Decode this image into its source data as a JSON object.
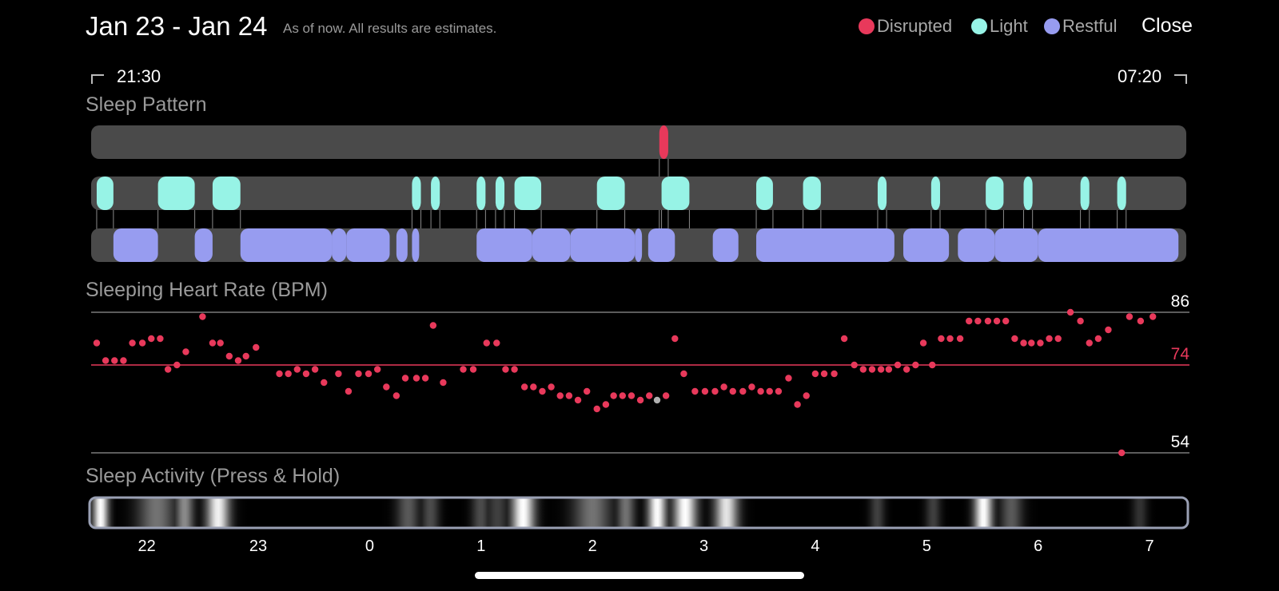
{
  "header": {
    "date_range": "Jan 23 - Jan 24",
    "note": "As of now. All results are estimates.",
    "close_label": "Close"
  },
  "legend": [
    {
      "label": "Disrupted",
      "color": "#e8395b"
    },
    {
      "label": "Light",
      "color": "#97f3e6"
    },
    {
      "label": "Restful",
      "color": "#979cf0"
    }
  ],
  "time_range": {
    "start": "21:30",
    "end": "07:20"
  },
  "sections": {
    "sleep_pattern": "Sleep Pattern",
    "heart_rate": "Sleeping Heart Rate (BPM)",
    "activity": "Sleep Activity (Press & Hold)"
  },
  "colors": {
    "track": "#4a4a4a",
    "heart_dot": "#e8395b",
    "heart_selected_dot": "#b0b0b0",
    "avg_line": "#e8395b",
    "ref_line": "#7a7a7a",
    "activity_border": "#9aa0b4"
  },
  "chart_data": [
    {
      "type": "timeline",
      "title": "Sleep Pattern",
      "x_unit": "hours (22 = 22:00, 0 = midnight)",
      "start": 21.5,
      "end": 31.33,
      "rows": [
        {
          "name": "Disrupted",
          "segments": [
            [
              26.6,
              26.68
            ]
          ]
        },
        {
          "name": "Light",
          "segments": [
            [
              21.55,
              21.7
            ],
            [
              22.1,
              22.43
            ],
            [
              22.59,
              22.84
            ],
            [
              24.38,
              24.46
            ],
            [
              24.55,
              24.63
            ],
            [
              24.96,
              25.04
            ],
            [
              25.13,
              25.21
            ],
            [
              25.3,
              25.54
            ],
            [
              26.04,
              26.29
            ],
            [
              26.62,
              26.87
            ],
            [
              27.47,
              27.62
            ],
            [
              27.89,
              28.05
            ],
            [
              28.56,
              28.64
            ],
            [
              29.04,
              29.12
            ],
            [
              29.53,
              29.69
            ],
            [
              29.87,
              29.95
            ],
            [
              30.38,
              30.46
            ],
            [
              30.71,
              30.79
            ]
          ]
        },
        {
          "name": "Restful",
          "segments": [
            [
              21.7,
              22.1
            ],
            [
              22.43,
              22.59
            ],
            [
              22.84,
              23.66
            ],
            [
              23.66,
              23.79
            ],
            [
              23.79,
              24.18
            ],
            [
              24.24,
              24.34
            ],
            [
              24.38,
              24.44
            ],
            [
              24.96,
              25.46
            ],
            [
              25.46,
              25.8
            ],
            [
              25.8,
              26.38
            ],
            [
              26.38,
              26.44
            ],
            [
              26.5,
              26.74
            ],
            [
              27.08,
              27.31
            ],
            [
              27.47,
              28.71
            ],
            [
              28.79,
              29.2
            ],
            [
              29.28,
              29.61
            ],
            [
              29.61,
              30.0
            ],
            [
              30.0,
              31.26
            ]
          ]
        }
      ]
    },
    {
      "type": "scatter",
      "title": "Sleeping Heart Rate (BPM)",
      "ylabel": "BPM",
      "ylim": [
        54,
        86
      ],
      "reference_lines": [
        86,
        74,
        54
      ],
      "average": 74,
      "selected_x": 26.58,
      "x": [
        21.55,
        21.63,
        21.71,
        21.79,
        21.87,
        21.96,
        22.04,
        22.12,
        22.19,
        22.27,
        22.35,
        22.5,
        22.59,
        22.66,
        22.74,
        22.82,
        22.89,
        22.98,
        23.19,
        23.27,
        23.35,
        23.43,
        23.51,
        23.59,
        23.72,
        23.81,
        23.9,
        23.99,
        24.07,
        24.15,
        24.24,
        24.32,
        24.42,
        24.5,
        24.57,
        24.66,
        24.84,
        24.93,
        25.05,
        25.14,
        25.22,
        25.3,
        25.39,
        25.47,
        25.55,
        25.63,
        25.71,
        25.79,
        25.87,
        25.95,
        26.04,
        26.12,
        26.19,
        26.27,
        26.35,
        26.43,
        26.51,
        26.58,
        26.66,
        26.74,
        26.82,
        26.92,
        27.01,
        27.1,
        27.18,
        27.26,
        27.35,
        27.43,
        27.51,
        27.59,
        27.67,
        27.76,
        27.84,
        27.92,
        28.0,
        28.08,
        28.17,
        28.26,
        28.35,
        28.43,
        28.51,
        28.59,
        28.66,
        28.74,
        28.82,
        28.9,
        28.97,
        29.05,
        29.13,
        29.21,
        29.3,
        29.38,
        29.46,
        29.55,
        29.63,
        29.71,
        29.79,
        29.87,
        29.94,
        30.02,
        30.1,
        30.18,
        30.29,
        30.38,
        30.46,
        30.54,
        30.63,
        30.75,
        30.82,
        30.92,
        31.03
      ],
      "y": [
        79,
        75,
        75,
        75,
        79,
        79,
        80,
        80,
        73,
        74,
        77,
        85,
        79,
        79,
        76,
        75,
        76,
        78,
        72,
        72,
        73,
        72,
        73,
        70,
        72,
        68,
        72,
        72,
        73,
        69,
        67,
        71,
        71,
        71,
        83,
        70,
        73,
        73,
        79,
        79,
        73,
        73,
        69,
        69,
        68,
        69,
        67,
        67,
        66,
        68,
        64,
        65,
        67,
        67,
        67,
        66,
        67,
        66,
        67,
        80,
        72,
        68,
        68,
        68,
        69,
        68,
        68,
        69,
        68,
        68,
        68,
        71,
        65,
        67,
        72,
        72,
        72,
        80,
        74,
        73,
        73,
        73,
        73,
        74,
        73,
        74,
        79,
        74,
        80,
        80,
        80,
        84,
        84,
        84,
        84,
        84,
        80,
        79,
        79,
        79,
        80,
        80,
        86,
        84,
        79,
        80,
        82,
        54,
        85,
        84,
        85
      ]
    },
    {
      "type": "heatmap",
      "title": "Sleep Activity (Press & Hold)",
      "x_ticks": [
        "22",
        "23",
        "0",
        "1",
        "2",
        "3",
        "4",
        "5",
        "6",
        "7"
      ],
      "x_tick_values": [
        22,
        23,
        24,
        25,
        26,
        27,
        28,
        29,
        30,
        31
      ],
      "activity_peaks": [
        {
          "center": 21.6,
          "width": 0.1,
          "intensity": 1.0
        },
        {
          "center": 22.1,
          "width": 0.25,
          "intensity": 0.45
        },
        {
          "center": 22.35,
          "width": 0.12,
          "intensity": 0.55
        },
        {
          "center": 22.65,
          "width": 0.15,
          "intensity": 0.95
        },
        {
          "center": 24.35,
          "width": 0.15,
          "intensity": 0.35
        },
        {
          "center": 24.55,
          "width": 0.12,
          "intensity": 0.3
        },
        {
          "center": 25.0,
          "width": 0.12,
          "intensity": 0.3
        },
        {
          "center": 25.15,
          "width": 0.15,
          "intensity": 0.25
        },
        {
          "center": 25.38,
          "width": 0.15,
          "intensity": 1.0
        },
        {
          "center": 26.0,
          "width": 0.25,
          "intensity": 0.45
        },
        {
          "center": 26.3,
          "width": 0.12,
          "intensity": 0.45
        },
        {
          "center": 26.58,
          "width": 0.12,
          "intensity": 1.0
        },
        {
          "center": 26.83,
          "width": 0.15,
          "intensity": 1.0
        },
        {
          "center": 27.2,
          "width": 0.15,
          "intensity": 0.9
        },
        {
          "center": 28.55,
          "width": 0.1,
          "intensity": 0.25
        },
        {
          "center": 29.05,
          "width": 0.1,
          "intensity": 0.25
        },
        {
          "center": 29.5,
          "width": 0.12,
          "intensity": 1.0
        },
        {
          "center": 29.75,
          "width": 0.15,
          "intensity": 0.35
        },
        {
          "center": 30.9,
          "width": 0.1,
          "intensity": 0.2
        }
      ]
    }
  ]
}
